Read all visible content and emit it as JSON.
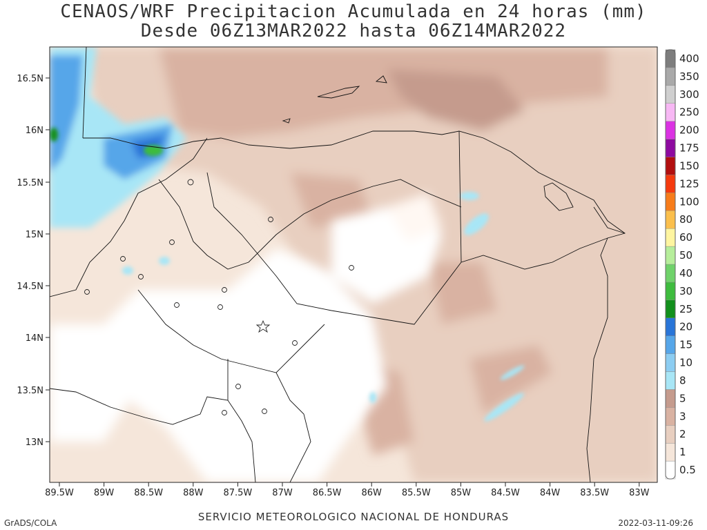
{
  "title": {
    "line1": "CENAOS/WRF Precipitacion Acumulada en 24 horas (mm)",
    "line2": "Desde 06Z13MAR2022 hasta 06Z14MAR2022"
  },
  "footer": {
    "left": "GrADS/COLA",
    "center": "SERVICIO METEOROLOGICO NACIONAL DE HONDURAS",
    "right": "2022-03-11-09:26"
  },
  "map": {
    "lat_ticks": [
      "16.5N",
      "16N",
      "15.5N",
      "15N",
      "14.5N",
      "14N",
      "13.5N",
      "13N"
    ],
    "lon_ticks": [
      "89.5W",
      "89W",
      "88.5W",
      "88W",
      "87.5W",
      "87W",
      "86.5W",
      "86W",
      "85.5W",
      "85W",
      "84.5W",
      "84W",
      "83.5W",
      "83W"
    ],
    "colorbar": [
      {
        "label": "0.5",
        "color": "#ffffff"
      },
      {
        "label": "1",
        "color": "#f5e6da"
      },
      {
        "label": "2",
        "color": "#e8cfc0"
      },
      {
        "label": "3",
        "color": "#d9b2a2"
      },
      {
        "label": "5",
        "color": "#c59b8d"
      },
      {
        "label": "8",
        "color": "#a8e6f6"
      },
      {
        "label": "10",
        "color": "#8ccdf2"
      },
      {
        "label": "15",
        "color": "#56a6e9"
      },
      {
        "label": "20",
        "color": "#2975d8"
      },
      {
        "label": "25",
        "color": "#12901c"
      },
      {
        "label": "30",
        "color": "#3ebc3e"
      },
      {
        "label": "40",
        "color": "#6fd26a"
      },
      {
        "label": "50",
        "color": "#b6ee9b"
      },
      {
        "label": "60",
        "color": "#fff5a0"
      },
      {
        "label": "80",
        "color": "#fbbf4c"
      },
      {
        "label": "100",
        "color": "#f77c1a"
      },
      {
        "label": "125",
        "color": "#f53a0e"
      },
      {
        "label": "150",
        "color": "#b20f0f"
      },
      {
        "label": "175",
        "color": "#8e0aa0"
      },
      {
        "label": "200",
        "color": "#db32e3"
      },
      {
        "label": "250",
        "color": "#f7b8f4"
      },
      {
        "label": "300",
        "color": "#cfcfcf"
      },
      {
        "label": "350",
        "color": "#a9a9a9"
      },
      {
        "label": "400",
        "color": "#7d7d7d"
      }
    ]
  }
}
